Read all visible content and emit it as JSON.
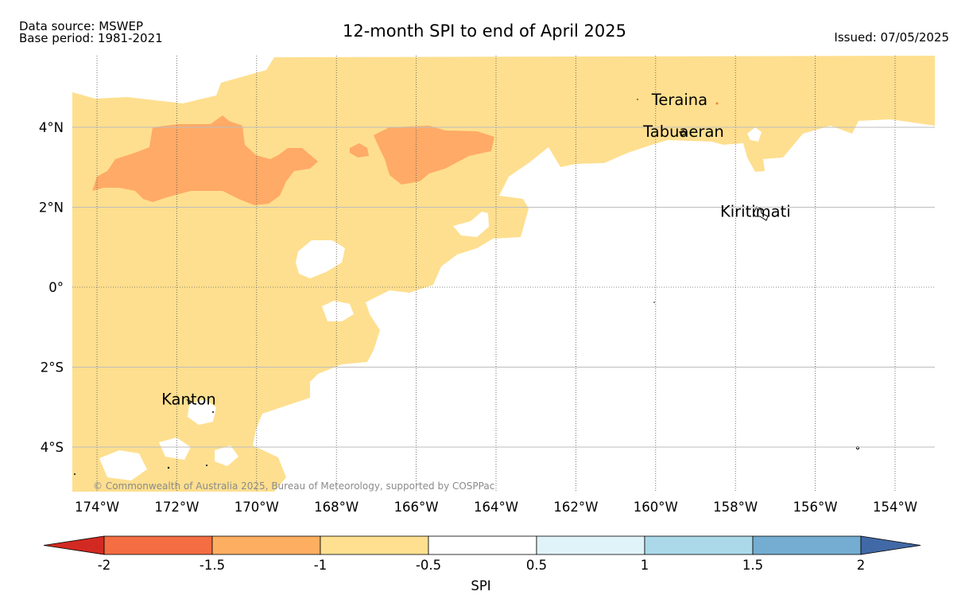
{
  "header": {
    "data_source": "Data source: MSWEP",
    "base_period": "Base period: 1981-2021",
    "title": "12-month SPI to end of April 2025",
    "issued": "Issued: 07/05/2025"
  },
  "map": {
    "lon_ticks": [
      "174°W",
      "172°W",
      "170°W",
      "168°W",
      "166°W",
      "164°W",
      "162°W",
      "160°W",
      "158°W",
      "156°W",
      "154°W"
    ],
    "lat_ticks": [
      "4°N",
      "2°N",
      "0°",
      "2°S",
      "4°S"
    ],
    "places": [
      {
        "name": "Teraina",
        "lon": -159.4,
        "lat": 4.7
      },
      {
        "name": "Tabuaeran",
        "lon": -159.3,
        "lat": 3.9
      },
      {
        "name": "Kiritimati",
        "lon": -157.5,
        "lat": 1.9
      },
      {
        "name": "Kanton",
        "lon": -171.7,
        "lat": -2.8
      }
    ],
    "copyright": "© Commonwealth of Australia 2025, Bureau of Meteorology, supported by COSPPac",
    "colors": {
      "spi_dry_moderate": "#ffaa66",
      "spi_dry_mild": "#fedf8f",
      "background": "#ffffff",
      "gridline": "#bdbdbd"
    }
  },
  "colorbar": {
    "label": "SPI",
    "tick_labels": [
      "-2",
      "-1.5",
      "-1",
      "-0.5",
      "0.5",
      "1",
      "1.5",
      "2"
    ],
    "bins": [
      {
        "range": "< -2",
        "color": "#d22a22"
      },
      {
        "range": "-2 to -1.5",
        "color": "#f46d43"
      },
      {
        "range": "-1.5 to -1",
        "color": "#fdae61"
      },
      {
        "range": "-1 to -0.5",
        "color": "#fee090"
      },
      {
        "range": "-0.5 to 0.5",
        "color": "#ffffff"
      },
      {
        "range": "0.5 to 1",
        "color": "#e0f3f8"
      },
      {
        "range": "1 to 1.5",
        "color": "#abd9e9"
      },
      {
        "range": "1.5 to 2",
        "color": "#74add1"
      },
      {
        "range": "> 2",
        "color": "#4169a6"
      }
    ]
  }
}
